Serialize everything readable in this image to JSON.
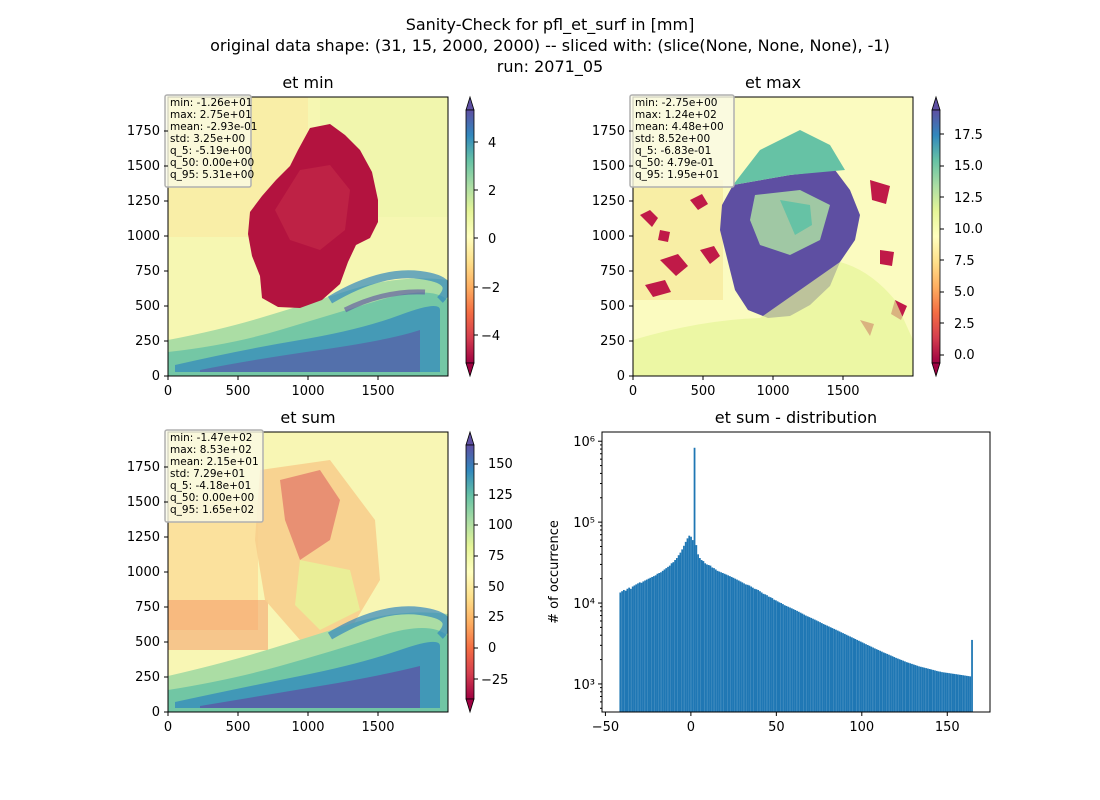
{
  "figure": {
    "title_lines": [
      "Sanity-Check for pfl_et_surf in [mm]",
      "original data shape: (31, 15, 2000, 2000) -- sliced with: (slice(None, None, None), -1)",
      "run: 2071_05"
    ]
  },
  "colors": {
    "hist_bar": "#1f77b4",
    "colormap": "Spectral",
    "colormap_stops": [
      "#9e0142",
      "#d53e4f",
      "#f46d43",
      "#fdae61",
      "#fee08b",
      "#ffffbf",
      "#e6f598",
      "#abdda4",
      "#66c2a5",
      "#3288bd",
      "#5e4fa2"
    ]
  },
  "chart_data": [
    {
      "type": "heatmap",
      "panel": "top-left",
      "title": "et min",
      "xticks": [
        0,
        500,
        1000,
        1500
      ],
      "yticks": [
        0,
        250,
        500,
        750,
        1000,
        1250,
        1500,
        1750
      ],
      "xlim": [
        0,
        2000
      ],
      "ylim": [
        0,
        2000
      ],
      "colorbar": {
        "range": [
          -5.19,
          5.31
        ],
        "ticks": [
          -4,
          -2,
          0,
          2,
          4
        ],
        "tick_labels": [
          "−4",
          "−2",
          "0",
          "2",
          "4"
        ],
        "extend": "both",
        "colormap": "Spectral"
      },
      "stats_lines": [
        "min: -1.26e+01",
        "max: 2.75e+01",
        "mean: -2.93e-01",
        "std: 3.25e+00",
        "q_5: -5.19e+00",
        "q_50: 0.00e+00",
        "q_95: 5.31e+00"
      ]
    },
    {
      "type": "heatmap",
      "panel": "top-right",
      "title": "et max",
      "xticks": [
        0,
        500,
        1000,
        1500
      ],
      "yticks": [
        0,
        250,
        500,
        750,
        1000,
        1250,
        1500,
        1750
      ],
      "xlim": [
        0,
        2000
      ],
      "ylim": [
        0,
        2000
      ],
      "colorbar": {
        "range": [
          -0.683,
          19.5
        ],
        "ticks": [
          0,
          2.5,
          5,
          7.5,
          10,
          12.5,
          15,
          17.5
        ],
        "tick_labels": [
          "0.0",
          "2.5",
          "5.0",
          "7.5",
          "10.0",
          "12.5",
          "15.0",
          "17.5"
        ],
        "extend": "both",
        "colormap": "Spectral"
      },
      "stats_lines": [
        "min: -2.75e+00",
        "max: 1.24e+02",
        "mean: 4.48e+00",
        "std: 8.52e+00",
        "q_5: -6.83e-01",
        "q_50: 4.79e-01",
        "q_95: 1.95e+01"
      ]
    },
    {
      "type": "heatmap",
      "panel": "bottom-left",
      "title": "et sum",
      "xticks": [
        0,
        500,
        1000,
        1500
      ],
      "yticks": [
        0,
        250,
        500,
        750,
        1000,
        1250,
        1500,
        1750
      ],
      "xlim": [
        0,
        2000
      ],
      "ylim": [
        0,
        2000
      ],
      "colorbar": {
        "range": [
          -41.8,
          165
        ],
        "ticks": [
          -25,
          0,
          25,
          50,
          75,
          100,
          125,
          150
        ],
        "tick_labels": [
          "−25",
          "0",
          "25",
          "50",
          "75",
          "100",
          "125",
          "150"
        ],
        "extend": "both",
        "colormap": "Spectral"
      },
      "stats_lines": [
        "min: -1.47e+02",
        "max: 8.53e+02",
        "mean: 2.15e+01",
        "std: 7.29e+01",
        "q_5: -4.18e+01",
        "q_50: 0.00e+00",
        "q_95: 1.65e+02"
      ]
    },
    {
      "type": "bar",
      "panel": "bottom-right",
      "title": "et sum - distribution",
      "ylabel": "# of occurrence",
      "xlim": [
        -52,
        175
      ],
      "ylim": [
        450,
        1300000
      ],
      "log_y": true,
      "xticks": [
        -50,
        0,
        50,
        100,
        150
      ],
      "xtick_labels": [
        "−50",
        "0",
        "50",
        "100",
        "150"
      ],
      "yticks": [
        1000,
        10000,
        100000,
        1000000
      ],
      "ytick_labels": [
        "10³",
        "10⁴",
        "10⁵",
        "10⁶"
      ],
      "bins": {
        "start": -41.8,
        "end": 165,
        "count": 200
      },
      "counts": [
        13500,
        14000,
        14500,
        14200,
        15000,
        15500,
        15000,
        16000,
        16500,
        17000,
        17500,
        18000,
        17800,
        18500,
        19000,
        19500,
        20000,
        20500,
        21000,
        21500,
        22000,
        23000,
        23500,
        24000,
        25000,
        26000,
        27000,
        28000,
        29000,
        31000,
        32000,
        34000,
        36000,
        39000,
        42000,
        46000,
        51000,
        57000,
        63000,
        68000,
        66000,
        60000,
        830000,
        52000,
        40000,
        36000,
        34000,
        33000,
        31000,
        30000,
        29500,
        29000,
        27500,
        27000,
        26000,
        25000,
        24500,
        24000,
        23500,
        23000,
        22500,
        22000,
        21500,
        21000,
        20500,
        20000,
        19500,
        19000,
        18500,
        18000,
        17500,
        17000,
        16800,
        16500,
        16000,
        15500,
        15000,
        14800,
        14500,
        14000,
        13500,
        13000,
        12800,
        12500,
        12000,
        11800,
        11500,
        11000,
        10800,
        10500,
        10200,
        10000,
        9700,
        9400,
        9200,
        9000,
        8800,
        8600,
        8400,
        8200,
        8000,
        7800,
        7600,
        7400,
        7200,
        7000,
        6850,
        6700,
        6550,
        6400,
        6250,
        6100,
        5950,
        5800,
        5650,
        5500,
        5380,
        5260,
        5140,
        5020,
        4900,
        4790,
        4680,
        4570,
        4460,
        4350,
        4250,
        4150,
        4050,
        3950,
        3860,
        3770,
        3680,
        3590,
        3500,
        3420,
        3340,
        3260,
        3180,
        3100,
        3030,
        2960,
        2890,
        2820,
        2750,
        2690,
        2630,
        2570,
        2510,
        2450,
        2400,
        2350,
        2300,
        2250,
        2200,
        2150,
        2100,
        2060,
        2020,
        1980,
        1940,
        1900,
        1860,
        1830,
        1800,
        1770,
        1740,
        1710,
        1680,
        1650,
        1630,
        1610,
        1590,
        1570,
        1550,
        1530,
        1510,
        1490,
        1470,
        1450,
        1430,
        1420,
        1400,
        1390,
        1380,
        1370,
        1360,
        1350,
        1340,
        1330,
        1320,
        1310,
        1300,
        1290,
        1280,
        1270,
        1260,
        1250,
        1240,
        3500
      ]
    }
  ]
}
